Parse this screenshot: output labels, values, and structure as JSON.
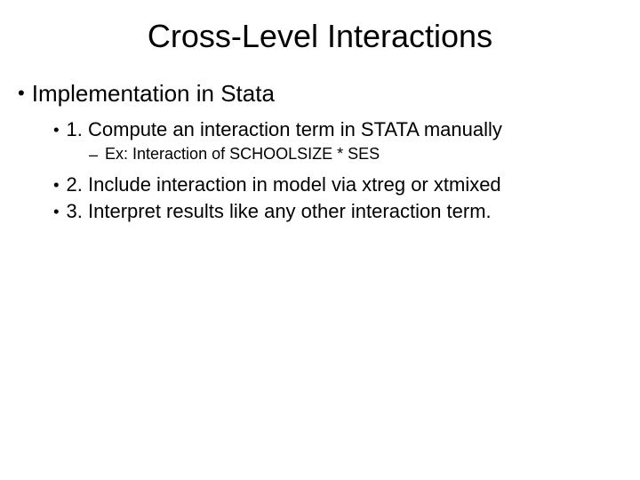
{
  "title": "Cross-Level Interactions",
  "level1_item": "Implementation in Stata",
  "level2_items": [
    "1.  Compute an interaction term in STATA manually",
    "2.  Include interaction in model via xtreg or xtmixed",
    "3.  Interpret results like any other interaction term."
  ],
  "level3_item": "Ex:  Interaction of SCHOOLSIZE * SES",
  "colors": {
    "background": "#ffffff",
    "text": "#000000"
  },
  "fonts": {
    "title_size": 36,
    "level1_size": 26,
    "level2_size": 22,
    "level3_size": 18,
    "family": "Arial"
  }
}
